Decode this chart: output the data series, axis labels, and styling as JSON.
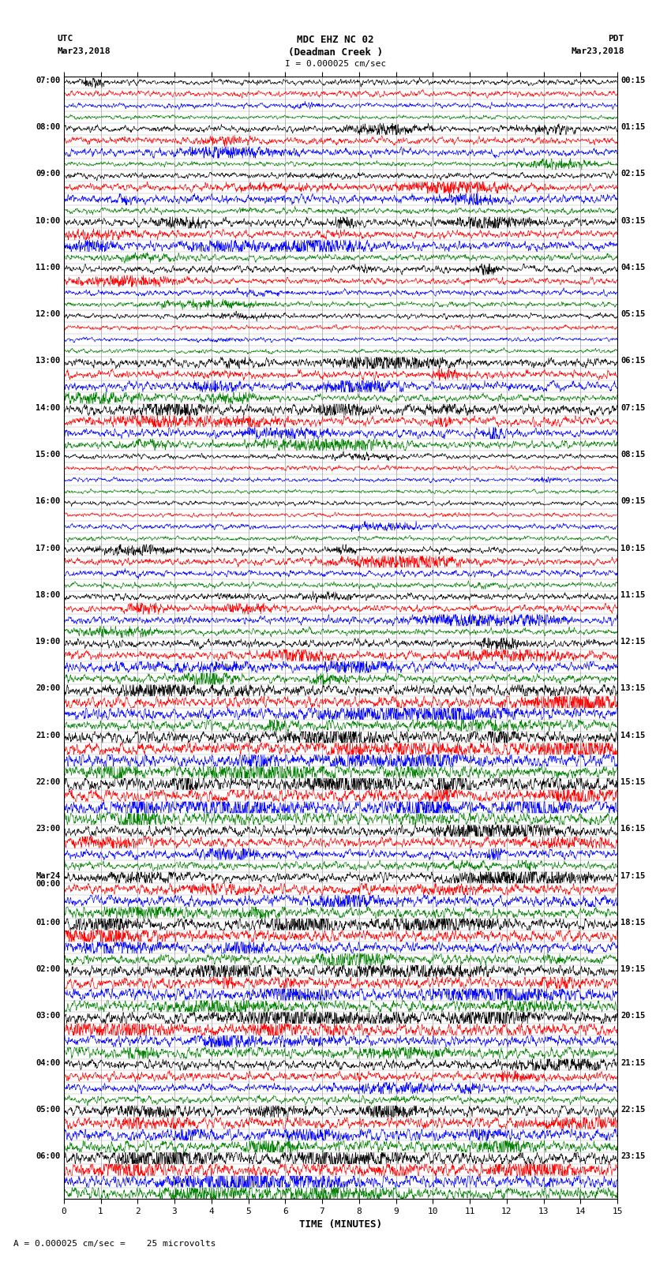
{
  "title_line1": "MDC EHZ NC 02",
  "title_line2": "(Deadman Creek )",
  "scale_text": "I = 0.000025 cm/sec",
  "left_header_line1": "UTC",
  "left_header_line2": "Mar23,2018",
  "right_header_line1": "PDT",
  "right_header_line2": "Mar23,2018",
  "xlabel": "TIME (MINUTES)",
  "footer_text": "A = 0.000025 cm/sec =    25 microvolts",
  "utc_labels": [
    "07:00",
    "",
    "",
    "",
    "08:00",
    "",
    "",
    "",
    "09:00",
    "",
    "",
    "",
    "10:00",
    "",
    "",
    "",
    "11:00",
    "",
    "",
    "",
    "12:00",
    "",
    "",
    "",
    "13:00",
    "",
    "",
    "",
    "14:00",
    "",
    "",
    "",
    "15:00",
    "",
    "",
    "",
    "16:00",
    "",
    "",
    "",
    "17:00",
    "",
    "",
    "",
    "18:00",
    "",
    "",
    "",
    "19:00",
    "",
    "",
    "",
    "20:00",
    "",
    "",
    "",
    "21:00",
    "",
    "",
    "",
    "22:00",
    "",
    "",
    "",
    "23:00",
    "",
    "",
    "",
    "Mar24\n00:00",
    "",
    "",
    "",
    "01:00",
    "",
    "",
    "",
    "02:00",
    "",
    "",
    "",
    "03:00",
    "",
    "",
    "",
    "04:00",
    "",
    "",
    "",
    "05:00",
    "",
    "",
    "",
    "06:00",
    "",
    "",
    ""
  ],
  "pdt_labels": [
    "00:15",
    "01:15",
    "02:15",
    "03:15",
    "04:15",
    "05:15",
    "06:15",
    "07:15",
    "08:15",
    "09:15",
    "10:15",
    "11:15",
    "12:15",
    "13:15",
    "14:15",
    "15:15",
    "16:15",
    "17:15",
    "18:15",
    "19:15",
    "20:15",
    "21:15",
    "22:15",
    "23:15"
  ],
  "trace_colors_cycle": [
    "black",
    "red",
    "blue",
    "green"
  ],
  "n_minutes": 15,
  "samples_per_row": 1800,
  "seed": 42,
  "bg_color": "white"
}
